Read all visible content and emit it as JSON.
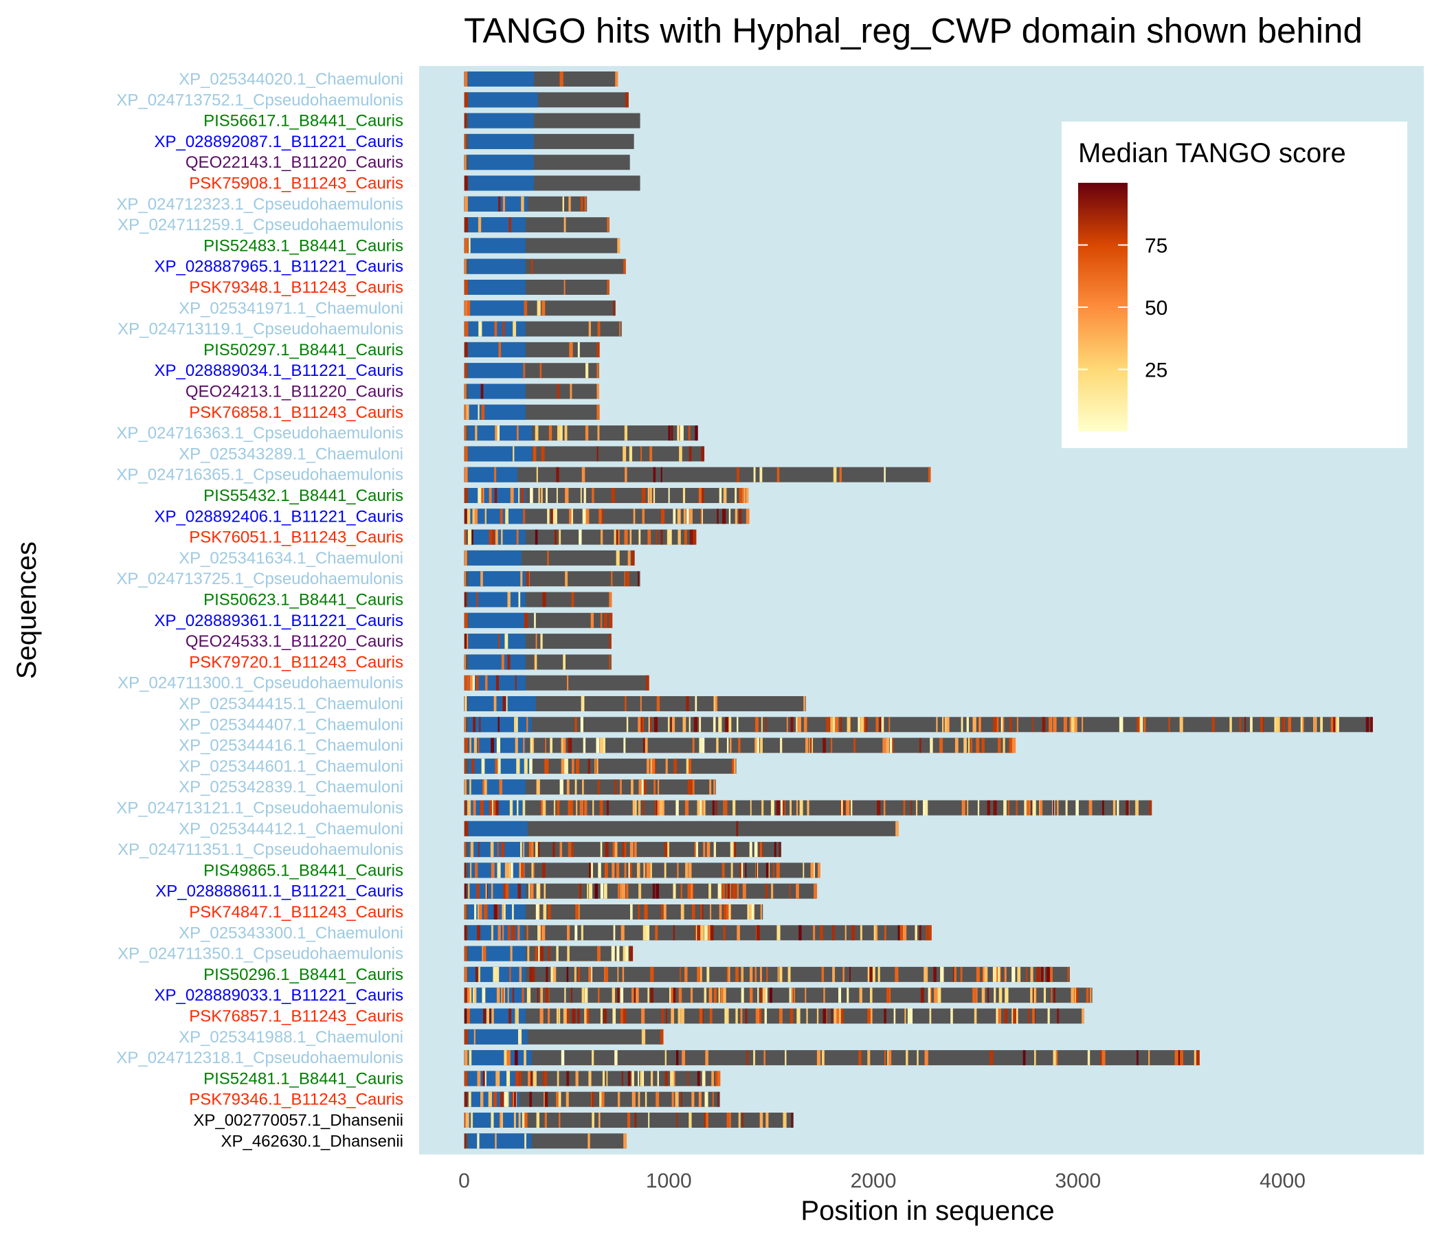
{
  "chart_data": {
    "type": "bar",
    "title": "TANGO hits with Hyphal_reg_CWP domain shown behind",
    "xlabel": "Position in sequence",
    "ylabel": "Sequences",
    "xlim": [
      -220,
      4690
    ],
    "xticks": [
      0,
      1000,
      2000,
      3000,
      4000
    ],
    "colors": {
      "panel_bg": "#d1e7ee",
      "protein_bar": "#545454",
      "domain": "#2166ac",
      "Chaemuloni": "#9ecae1",
      "Cpseudohaemulonis": "#9ecae1",
      "B8441_Cauris": "#007f00",
      "B11221_Cauris": "#0000ff",
      "B11220_Cauris": "#5b0b66",
      "B11243_Cauris": "#ff2a00",
      "Dhansenii": "#000000"
    },
    "legend": {
      "title": "Median TANGO score",
      "ticks": [
        25,
        50,
        75
      ],
      "range": [
        0,
        100
      ],
      "placement": "top-right inside panel"
    },
    "sequences": [
      {
        "name": "XP_025344020.1_Chaemuloni",
        "group": "Chaemuloni",
        "length": 750,
        "domain": [
          20,
          340
        ],
        "hits": 3
      },
      {
        "name": "XP_024713752.1_Cpseudohaemulonis",
        "group": "Cpseudohaemulonis",
        "length": 800,
        "domain": [
          20,
          360
        ],
        "hits": 2
      },
      {
        "name": "PIS56617.1_B8441_Cauris",
        "group": "B8441_Cauris",
        "length": 860,
        "domain": [
          20,
          340
        ],
        "hits": 1
      },
      {
        "name": "XP_028892087.1_B11221_Cauris",
        "group": "B11221_Cauris",
        "length": 830,
        "domain": [
          20,
          340
        ],
        "hits": 1
      },
      {
        "name": "QEO22143.1_B11220_Cauris",
        "group": "B11220_Cauris",
        "length": 810,
        "domain": [
          20,
          340
        ],
        "hits": 1
      },
      {
        "name": "PSK75908.1_B11243_Cauris",
        "group": "B11243_Cauris",
        "length": 860,
        "domain": [
          20,
          340
        ],
        "hits": 1
      },
      {
        "name": "XP_024712323.1_Cpseudohaemulonis",
        "group": "Cpseudohaemulonis",
        "length": 600,
        "domain": [
          20,
          310
        ],
        "hits": 8
      },
      {
        "name": "XP_024711259.1_Cpseudohaemulonis",
        "group": "Cpseudohaemulonis",
        "length": 710,
        "domain": [
          20,
          300
        ],
        "hits": 6
      },
      {
        "name": "PIS52483.1_B8441_Cauris",
        "group": "B8441_Cauris",
        "length": 760,
        "domain": [
          20,
          300
        ],
        "hits": 3
      },
      {
        "name": "XP_028887965.1_B11221_Cauris",
        "group": "B11221_Cauris",
        "length": 790,
        "domain": [
          20,
          300
        ],
        "hits": 3
      },
      {
        "name": "PSK79348.1_B11243_Cauris",
        "group": "B11243_Cauris",
        "length": 710,
        "domain": [
          20,
          300
        ],
        "hits": 3
      },
      {
        "name": "XP_025341971.1_Chaemuloni",
        "group": "Chaemuloni",
        "length": 740,
        "domain": [
          20,
          300
        ],
        "hits": 6
      },
      {
        "name": "XP_024713119.1_Cpseudohaemulonis",
        "group": "Cpseudohaemulonis",
        "length": 770,
        "domain": [
          20,
          300
        ],
        "hits": 8
      },
      {
        "name": "PIS50297.1_B8441_Cauris",
        "group": "B8441_Cauris",
        "length": 660,
        "domain": [
          20,
          300
        ],
        "hits": 5
      },
      {
        "name": "XP_028889034.1_B11221_Cauris",
        "group": "B11221_Cauris",
        "length": 660,
        "domain": [
          20,
          300
        ],
        "hits": 5
      },
      {
        "name": "QEO24213.1_B11220_Cauris",
        "group": "B11220_Cauris",
        "length": 660,
        "domain": [
          20,
          300
        ],
        "hits": 5
      },
      {
        "name": "PSK76858.1_B11243_Cauris",
        "group": "B11243_Cauris",
        "length": 660,
        "domain": [
          20,
          300
        ],
        "hits": 5
      },
      {
        "name": "XP_024716363.1_Cpseudohaemulonis",
        "group": "Cpseudohaemulonis",
        "length": 1140,
        "domain": [
          20,
          330
        ],
        "hits": 20
      },
      {
        "name": "XP_025343289.1_Chaemuloni",
        "group": "Chaemuloni",
        "length": 1170,
        "domain": [
          20,
          330
        ],
        "hits": 12
      },
      {
        "name": "XP_024716365.1_Cpseudohaemulonis",
        "group": "Cpseudohaemulonis",
        "length": 2280,
        "domain": [
          20,
          260
        ],
        "hits": 16
      },
      {
        "name": "PIS55432.1_B8441_Cauris",
        "group": "B8441_Cauris",
        "length": 1390,
        "domain": [
          20,
          300
        ],
        "hits": 38
      },
      {
        "name": "XP_028892406.1_B11221_Cauris",
        "group": "B11221_Cauris",
        "length": 1390,
        "domain": [
          20,
          300
        ],
        "hits": 38
      },
      {
        "name": "PSK76051.1_B11243_Cauris",
        "group": "B11243_Cauris",
        "length": 1130,
        "domain": [
          20,
          300
        ],
        "hits": 30
      },
      {
        "name": "XP_025341634.1_Chaemuloni",
        "group": "Chaemuloni",
        "length": 830,
        "domain": [
          20,
          280
        ],
        "hits": 5
      },
      {
        "name": "XP_024713725.1_Cpseudohaemulonis",
        "group": "Cpseudohaemulonis",
        "length": 860,
        "domain": [
          20,
          300
        ],
        "hits": 10
      },
      {
        "name": "PIS50623.1_B8441_Cauris",
        "group": "B8441_Cauris",
        "length": 720,
        "domain": [
          20,
          300
        ],
        "hits": 7
      },
      {
        "name": "XP_028889361.1_B11221_Cauris",
        "group": "B11221_Cauris",
        "length": 720,
        "domain": [
          20,
          300
        ],
        "hits": 7
      },
      {
        "name": "QEO24533.1_B11220_Cauris",
        "group": "B11220_Cauris",
        "length": 720,
        "domain": [
          20,
          300
        ],
        "hits": 7
      },
      {
        "name": "PSK79720.1_B11243_Cauris",
        "group": "B11243_Cauris",
        "length": 720,
        "domain": [
          20,
          300
        ],
        "hits": 7
      },
      {
        "name": "XP_024711300.1_Cpseudohaemulonis",
        "group": "Cpseudohaemulonis",
        "length": 900,
        "domain": [
          20,
          300
        ],
        "hits": 10
      },
      {
        "name": "XP_025344415.1_Chaemuloni",
        "group": "Chaemuloni",
        "length": 1670,
        "domain": [
          20,
          350
        ],
        "hits": 14
      },
      {
        "name": "XP_025344407.1_Chaemuloni",
        "group": "Chaemuloni",
        "length": 4440,
        "domain": [
          20,
          330
        ],
        "hits": 120
      },
      {
        "name": "XP_025344416.1_Chaemuloni",
        "group": "Chaemuloni",
        "length": 2690,
        "domain": [
          20,
          300
        ],
        "hits": 60
      },
      {
        "name": "XP_025344601.1_Chaemuloni",
        "group": "Chaemuloni",
        "length": 1330,
        "domain": [
          20,
          330
        ],
        "hits": 30
      },
      {
        "name": "XP_025342839.1_Chaemuloni",
        "group": "Chaemuloni",
        "length": 1230,
        "domain": [
          20,
          300
        ],
        "hits": 25
      },
      {
        "name": "XP_024713121.1_Cpseudohaemulonis",
        "group": "Cpseudohaemulonis",
        "length": 3360,
        "domain": [
          20,
          300
        ],
        "hits": 100
      },
      {
        "name": "XP_025344412.1_Chaemuloni",
        "group": "Chaemuloni",
        "length": 2120,
        "domain": [
          20,
          310
        ],
        "hits": 3
      },
      {
        "name": "XP_024711351.1_Cpseudohaemulonis",
        "group": "Cpseudohaemulonis",
        "length": 1550,
        "domain": [
          20,
          300
        ],
        "hits": 45
      },
      {
        "name": "PIS49865.1_B8441_Cauris",
        "group": "B8441_Cauris",
        "length": 1740,
        "domain": [
          20,
          300
        ],
        "hits": 50
      },
      {
        "name": "XP_028888611.1_B11221_Cauris",
        "group": "B11221_Cauris",
        "length": 1720,
        "domain": [
          20,
          300
        ],
        "hits": 50
      },
      {
        "name": "PSK74847.1_B11243_Cauris",
        "group": "B11243_Cauris",
        "length": 1460,
        "domain": [
          20,
          300
        ],
        "hits": 40
      },
      {
        "name": "XP_025343300.1_Chaemuloni",
        "group": "Chaemuloni",
        "length": 2280,
        "domain": [
          20,
          290
        ],
        "hits": 55
      },
      {
        "name": "XP_024711350.1_Cpseudohaemulonis",
        "group": "Cpseudohaemulonis",
        "length": 820,
        "domain": [
          20,
          300
        ],
        "hits": 18
      },
      {
        "name": "PIS50296.1_B8441_Cauris",
        "group": "B8441_Cauris",
        "length": 2960,
        "domain": [
          20,
          300
        ],
        "hits": 85
      },
      {
        "name": "XP_028889033.1_B11221_Cauris",
        "group": "B11221_Cauris",
        "length": 3070,
        "domain": [
          20,
          300
        ],
        "hits": 90
      },
      {
        "name": "PSK76857.1_B11243_Cauris",
        "group": "B11243_Cauris",
        "length": 3030,
        "domain": [
          20,
          300
        ],
        "hits": 88
      },
      {
        "name": "XP_025341988.1_Chaemuloni",
        "group": "Chaemuloni",
        "length": 970,
        "domain": [
          20,
          310
        ],
        "hits": 5
      },
      {
        "name": "XP_024712318.1_Cpseudohaemulonis",
        "group": "Cpseudohaemulonis",
        "length": 3590,
        "domain": [
          20,
          330
        ],
        "hits": 45
      },
      {
        "name": "PIS52481.1_B8441_Cauris",
        "group": "B8441_Cauris",
        "length": 1250,
        "domain": [
          20,
          270
        ],
        "hits": 40
      },
      {
        "name": "PSK79346.1_B11243_Cauris",
        "group": "B11243_Cauris",
        "length": 1250,
        "domain": [
          20,
          270
        ],
        "hits": 40
      },
      {
        "name": "XP_002770057.1_Dhansenii",
        "group": "Dhansenii",
        "length": 1610,
        "domain": [
          20,
          300
        ],
        "hits": 30
      },
      {
        "name": "XP_462630.1_Dhansenii",
        "group": "Dhansenii",
        "length": 790,
        "domain": [
          20,
          330
        ],
        "hits": 6
      }
    ]
  }
}
